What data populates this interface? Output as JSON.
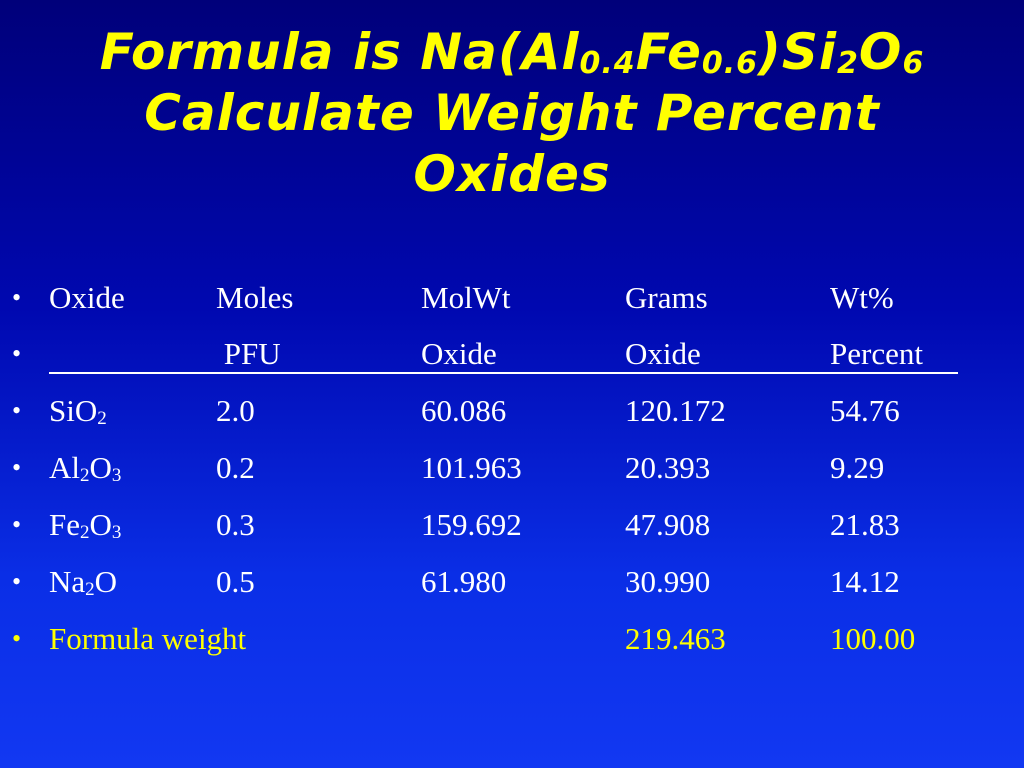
{
  "title": {
    "line1": {
      "prefix": "Formula is Na(Al",
      "sub1": "0.4",
      "mid1": "Fe",
      "sub2": "0.6",
      "mid2": ")Si",
      "sub3": "2",
      "mid3": "O",
      "sub4": "6"
    },
    "line2": "Calculate Weight Percent",
    "line3": "Oxides"
  },
  "bullet_char": "•",
  "header1": [
    "Oxide",
    "Moles",
    "MolWt",
    "Grams",
    "Wt%"
  ],
  "header2": [
    "",
    " PFU",
    "Oxide",
    "Oxide",
    "Percent"
  ],
  "rows": [
    {
      "oxide_a": "SiO",
      "oxide_sub1": "2",
      "oxide_b": "",
      "oxide_sub2": "",
      "moles": "2.0",
      "molwt": "60.086",
      "grams": "120.172",
      "wt": "54.76"
    },
    {
      "oxide_a": "Al",
      "oxide_sub1": "2",
      "oxide_b": "O",
      "oxide_sub2": "3",
      "moles": "0.2",
      "molwt": "101.963",
      "grams": "20.393",
      "wt": "9.29"
    },
    {
      "oxide_a": "Fe",
      "oxide_sub1": "2",
      "oxide_b": "O",
      "oxide_sub2": "3",
      "moles": "0.3",
      "molwt": "159.692",
      "grams": "47.908",
      "wt": "21.83"
    },
    {
      "oxide_a": "Na",
      "oxide_sub1": "2",
      "oxide_b": "O",
      "oxide_sub2": "",
      "moles": "0.5",
      "molwt": "61.980",
      "grams": "30.990",
      "wt": "14.12"
    }
  ],
  "total": {
    "label": "Formula weight",
    "grams": "219.463",
    "wt": "100.00"
  },
  "colors": {
    "title": "#ffff00",
    "body_text": "#ffffff",
    "highlight": "#ffff00",
    "background_top": "#00007a",
    "background_bottom": "#1238f2"
  }
}
